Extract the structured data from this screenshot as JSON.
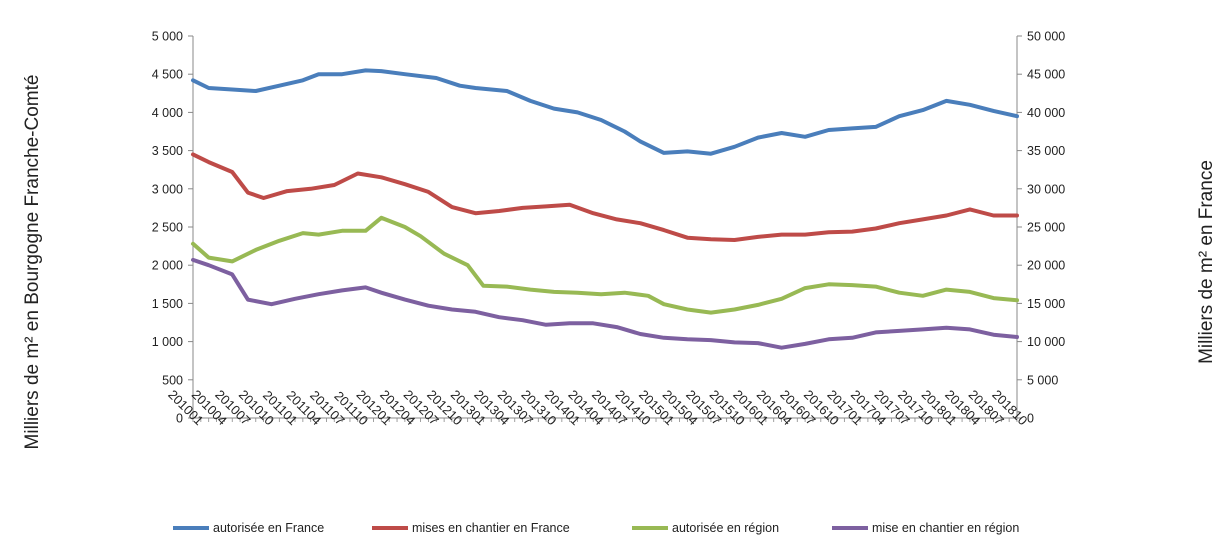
{
  "chart_data": {
    "type": "line",
    "title": "",
    "ylabel_left": "Milliers de m² en Bourgogne Franche-Comté",
    "ylabel_right": "Milliers de m² en France",
    "ylim_left": [
      0,
      5000
    ],
    "ylim_right": [
      0,
      50000
    ],
    "yticks_left": [
      "0",
      "500",
      "1 000",
      "1 500",
      "2 000",
      "2 500",
      "3 000",
      "3 500",
      "4 000",
      "4 500",
      "5 000"
    ],
    "yticks_right": [
      "0",
      "5 000",
      "10 000",
      "15 000",
      "20 000",
      "25 000",
      "30 000",
      "35 000",
      "40 000",
      "45 000",
      "50 000"
    ],
    "x_start": "201001",
    "x_end": "201810",
    "x_ticks": [
      "201001",
      "201004",
      "201007",
      "201010",
      "201101",
      "201104",
      "201107",
      "201110",
      "201201",
      "201204",
      "201207",
      "201210",
      "201301",
      "201304",
      "201307",
      "201310",
      "201401",
      "201404",
      "201407",
      "201410",
      "201501",
      "201504",
      "201507",
      "201510",
      "201601",
      "201604",
      "201607",
      "201610",
      "201701",
      "201704",
      "201707",
      "201710",
      "201801",
      "201804",
      "201807",
      "201810"
    ],
    "grid": false,
    "legend_position": "bottom",
    "series": [
      {
        "name": "autorisée en France",
        "axis": "right",
        "color": "#4a7ebb",
        "points": [
          [
            "201001",
            44200
          ],
          [
            "201003",
            43200
          ],
          [
            "201006",
            43000
          ],
          [
            "201009",
            42800
          ],
          [
            "201012",
            43500
          ],
          [
            "201103",
            44200
          ],
          [
            "201105",
            45000
          ],
          [
            "201108",
            45000
          ],
          [
            "201111",
            45500
          ],
          [
            "201201",
            45400
          ],
          [
            "201204",
            45000
          ],
          [
            "201208",
            44500
          ],
          [
            "201211",
            43500
          ],
          [
            "201301",
            43200
          ],
          [
            "201305",
            42800
          ],
          [
            "201308",
            41500
          ],
          [
            "201311",
            40500
          ],
          [
            "201402",
            40000
          ],
          [
            "201405",
            39000
          ],
          [
            "201408",
            37500
          ],
          [
            "201410",
            36200
          ],
          [
            "201501",
            34700
          ],
          [
            "201504",
            34900
          ],
          [
            "201507",
            34600
          ],
          [
            "201510",
            35500
          ],
          [
            "201601",
            36700
          ],
          [
            "201604",
            37300
          ],
          [
            "201607",
            36800
          ],
          [
            "201610",
            37700
          ],
          [
            "201701",
            37900
          ],
          [
            "201704",
            38100
          ],
          [
            "201707",
            39500
          ],
          [
            "201710",
            40300
          ],
          [
            "201801",
            41500
          ],
          [
            "201804",
            41000
          ],
          [
            "201807",
            40200
          ],
          [
            "201810",
            39500
          ]
        ]
      },
      {
        "name": "mises en chantier en France",
        "axis": "right",
        "color": "#be4b48",
        "points": [
          [
            "201001",
            34500
          ],
          [
            "201003",
            33500
          ],
          [
            "201006",
            32200
          ],
          [
            "201008",
            29500
          ],
          [
            "201010",
            28800
          ],
          [
            "201101",
            29700
          ],
          [
            "201104",
            30000
          ],
          [
            "201107",
            30500
          ],
          [
            "201110",
            32000
          ],
          [
            "201201",
            31500
          ],
          [
            "201204",
            30600
          ],
          [
            "201207",
            29600
          ],
          [
            "201210",
            27600
          ],
          [
            "201301",
            26800
          ],
          [
            "201304",
            27100
          ],
          [
            "201307",
            27500
          ],
          [
            "201310",
            27700
          ],
          [
            "201401",
            27900
          ],
          [
            "201404",
            26800
          ],
          [
            "201407",
            26000
          ],
          [
            "201410",
            25500
          ],
          [
            "201501",
            24600
          ],
          [
            "201504",
            23600
          ],
          [
            "201507",
            23400
          ],
          [
            "201510",
            23300
          ],
          [
            "201601",
            23700
          ],
          [
            "201604",
            24000
          ],
          [
            "201607",
            24000
          ],
          [
            "201610",
            24300
          ],
          [
            "201701",
            24400
          ],
          [
            "201704",
            24800
          ],
          [
            "201707",
            25500
          ],
          [
            "201710",
            26000
          ],
          [
            "201801",
            26500
          ],
          [
            "201804",
            27300
          ],
          [
            "201807",
            26500
          ],
          [
            "201810",
            26500
          ]
        ]
      },
      {
        "name": "autorisée en région",
        "axis": "left",
        "color": "#98b954",
        "points": [
          [
            "201001",
            2280
          ],
          [
            "201003",
            2100
          ],
          [
            "201006",
            2050
          ],
          [
            "201009",
            2200
          ],
          [
            "201012",
            2320
          ],
          [
            "201103",
            2420
          ],
          [
            "201105",
            2400
          ],
          [
            "201108",
            2450
          ],
          [
            "201111",
            2450
          ],
          [
            "201201",
            2620
          ],
          [
            "201204",
            2500
          ],
          [
            "201206",
            2380
          ],
          [
            "201209",
            2150
          ],
          [
            "201212",
            2000
          ],
          [
            "201302",
            1730
          ],
          [
            "201305",
            1720
          ],
          [
            "201308",
            1680
          ],
          [
            "201311",
            1650
          ],
          [
            "201402",
            1640
          ],
          [
            "201405",
            1620
          ],
          [
            "201408",
            1640
          ],
          [
            "201411",
            1600
          ],
          [
            "201501",
            1490
          ],
          [
            "201504",
            1420
          ],
          [
            "201507",
            1380
          ],
          [
            "201510",
            1420
          ],
          [
            "201601",
            1480
          ],
          [
            "201604",
            1560
          ],
          [
            "201607",
            1700
          ],
          [
            "201610",
            1750
          ],
          [
            "201701",
            1740
          ],
          [
            "201704",
            1720
          ],
          [
            "201707",
            1640
          ],
          [
            "201710",
            1600
          ],
          [
            "201801",
            1680
          ],
          [
            "201804",
            1650
          ],
          [
            "201807",
            1570
          ],
          [
            "201810",
            1540
          ]
        ]
      },
      {
        "name": "mise en chantier en région",
        "axis": "left",
        "color": "#7d60a0",
        "points": [
          [
            "201001",
            2070
          ],
          [
            "201003",
            2000
          ],
          [
            "201006",
            1880
          ],
          [
            "201008",
            1550
          ],
          [
            "201011",
            1490
          ],
          [
            "201102",
            1560
          ],
          [
            "201105",
            1620
          ],
          [
            "201108",
            1670
          ],
          [
            "201111",
            1710
          ],
          [
            "201201",
            1640
          ],
          [
            "201204",
            1550
          ],
          [
            "201207",
            1470
          ],
          [
            "201210",
            1420
          ],
          [
            "201301",
            1390
          ],
          [
            "201304",
            1320
          ],
          [
            "201307",
            1280
          ],
          [
            "201310",
            1220
          ],
          [
            "201401",
            1240
          ],
          [
            "201404",
            1240
          ],
          [
            "201407",
            1190
          ],
          [
            "201410",
            1100
          ],
          [
            "201501",
            1050
          ],
          [
            "201504",
            1030
          ],
          [
            "201507",
            1020
          ],
          [
            "201510",
            990
          ],
          [
            "201601",
            980
          ],
          [
            "201604",
            920
          ],
          [
            "201607",
            970
          ],
          [
            "201610",
            1030
          ],
          [
            "201701",
            1050
          ],
          [
            "201704",
            1120
          ],
          [
            "201707",
            1140
          ],
          [
            "201710",
            1160
          ],
          [
            "201801",
            1180
          ],
          [
            "201804",
            1160
          ],
          [
            "201807",
            1090
          ],
          [
            "201810",
            1060
          ]
        ]
      }
    ]
  }
}
